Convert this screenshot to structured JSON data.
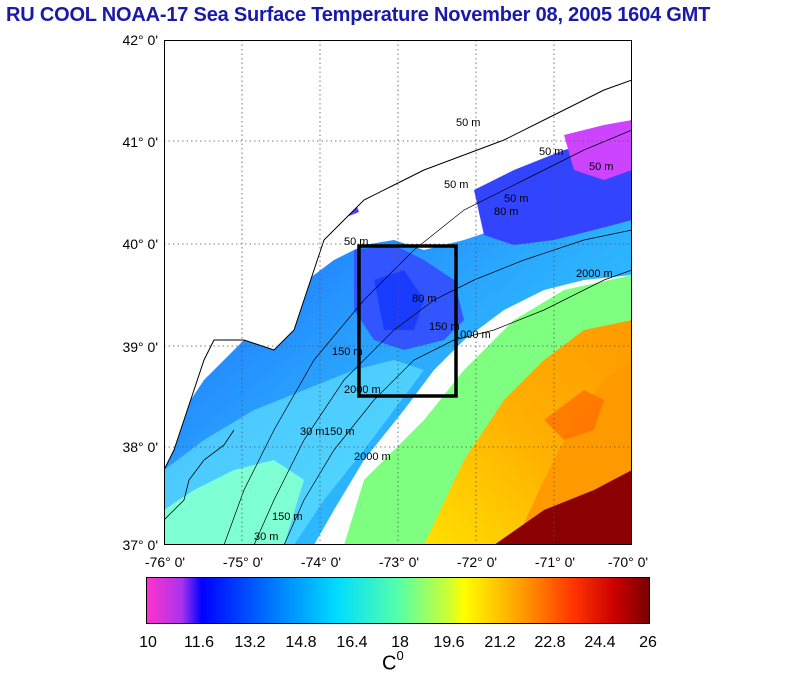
{
  "header": {
    "title": "RU COOL  NOAA-17 Sea Surface Temperature November 08, 2005 1604 GMT"
  },
  "map": {
    "lat_labels": [
      "42° 0'",
      "41° 0'",
      "40° 0'",
      "39° 0'",
      "38° 0'",
      "37° 0'"
    ],
    "lon_labels": [
      "-76° 0'",
      "-75° 0'",
      "-74° 0'",
      "-73° 0'",
      "-72° 0'",
      "-71° 0'",
      "-70° 0'"
    ],
    "contour_labels": [
      "50 m",
      "50 m",
      "50 m",
      "50 m",
      "50 m",
      "50 m",
      "80 m",
      "150 m",
      "80 m",
      "1000 m",
      "2000 m",
      "150 m",
      "2000 m",
      "150 m",
      "2000 m",
      "150 m",
      "30 m",
      "30 m"
    ],
    "study_box": {
      "lon_min": -73.4,
      "lon_max": -72.25,
      "lat_min": 38.5,
      "lat_max": 40.0
    }
  },
  "colorbar": {
    "ticks": [
      "10",
      "11.6",
      "13.2",
      "14.8",
      "16.4",
      "18",
      "19.6",
      "21.2",
      "22.8",
      "24.4",
      "26"
    ],
    "unit_base": "C",
    "unit_sup": "0",
    "colors": [
      "#ff33cc",
      "#8a2be2",
      "#0000ff",
      "#0066ff",
      "#00ccff",
      "#00ffcc",
      "#66ff66",
      "#ffff00",
      "#ffaa00",
      "#ff4400",
      "#cc0000",
      "#880000"
    ]
  }
}
